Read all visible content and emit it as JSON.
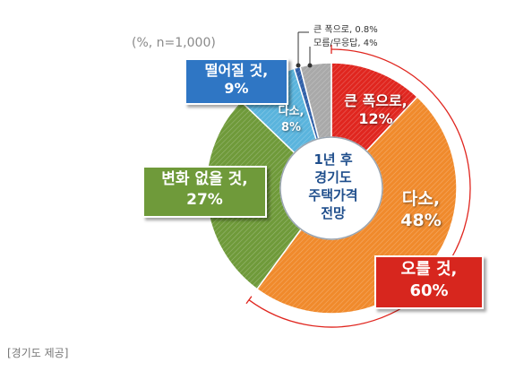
{
  "unit_note": "(%, n=1,000)",
  "source_note": "[경기도 제공]",
  "center_title": [
    "1년 후",
    "경기도",
    "주택가격",
    "전망"
  ],
  "chart_data": {
    "type": "pie",
    "style": "donut",
    "slices": [
      {
        "label": "큰 폭으로,",
        "value": 12,
        "value_label": "12%",
        "color": "#e0261f"
      },
      {
        "label": "다소,",
        "value": 48,
        "value_label": "48%",
        "color": "#f08a2c"
      },
      {
        "label": "변화 없을 것,",
        "value": 27,
        "value_label": "27%",
        "color": "#6f9a3a"
      },
      {
        "label": "다소,",
        "value": 8,
        "value_label": "8%",
        "color": "#5ab4dd"
      },
      {
        "label": "큰 폭으로,",
        "value": 0.8,
        "value_label": "0.8%",
        "color": "#2f5fa8"
      },
      {
        "label": "모름/무응답,",
        "value": 4,
        "value_label": "4%",
        "color": "#a9a9a9"
      }
    ],
    "groups": [
      {
        "label": "오를 것,",
        "value_label": "60%",
        "color": "#d7261e"
      },
      {
        "label": "떨어질 것,",
        "value_label": "9%",
        "color": "#2f76c4"
      }
    ]
  },
  "small_legend": [
    "큰 폭으로, 0.8%",
    "모름/무응답, 4%"
  ],
  "callouts": {
    "fall": {
      "line1": "떨어질 것,",
      "line2": "9%"
    },
    "nochange": {
      "line1": "변화 없을 것,",
      "line2": "27%"
    },
    "rise": {
      "line1": "오를 것,",
      "line2": "60%"
    }
  },
  "slice_labels": {
    "big_rise": {
      "line1": "큰 폭으로,",
      "line2": "12%"
    },
    "small_rise": {
      "line1": "다소,",
      "line2": "48%"
    },
    "small_fall": {
      "line1": "다소,",
      "line2": "8%"
    }
  }
}
